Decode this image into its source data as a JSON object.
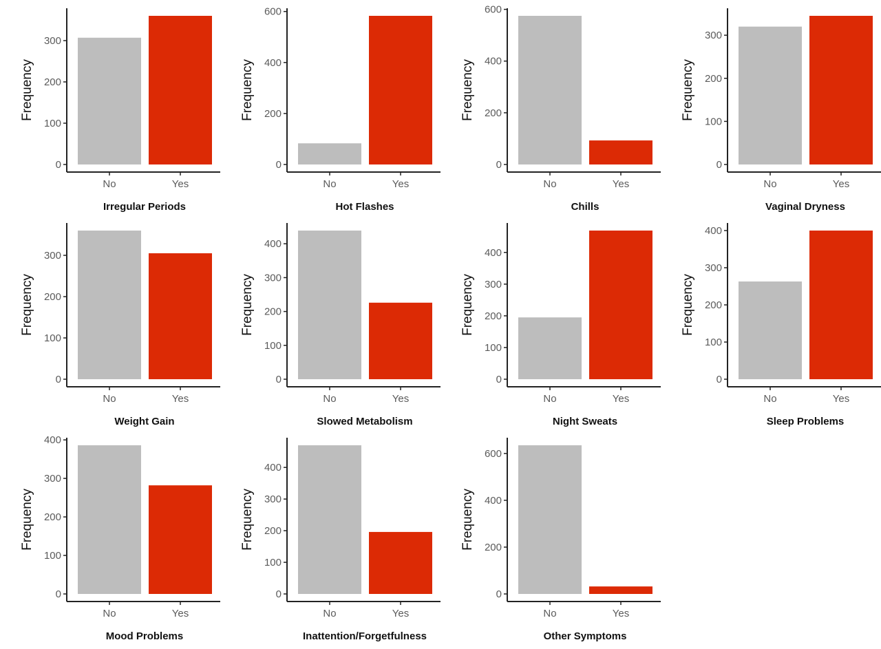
{
  "chart_data": [
    {
      "type": "bar",
      "title": "Irregular Periods",
      "ylabel": "Frequency",
      "categories": [
        "No",
        "Yes"
      ],
      "values": [
        307,
        360
      ],
      "yticks": [
        0,
        100,
        200,
        300
      ],
      "ylim": [
        0,
        360
      ]
    },
    {
      "type": "bar",
      "title": "Hot Flashes",
      "ylabel": "Frequency",
      "categories": [
        "No",
        "Yes"
      ],
      "values": [
        83,
        583
      ],
      "yticks": [
        0,
        200,
        400,
        600
      ],
      "ylim": [
        0,
        583
      ]
    },
    {
      "type": "bar",
      "title": "Chills",
      "ylabel": "Frequency",
      "categories": [
        "No",
        "Yes"
      ],
      "values": [
        575,
        93
      ],
      "yticks": [
        0,
        200,
        400,
        600
      ],
      "ylim": [
        0,
        575
      ]
    },
    {
      "type": "bar",
      "title": "Vaginal Dryness",
      "ylabel": "Frequency",
      "categories": [
        "No",
        "Yes"
      ],
      "values": [
        320,
        345
      ],
      "yticks": [
        0,
        100,
        200,
        300
      ],
      "ylim": [
        0,
        345
      ]
    },
    {
      "type": "bar",
      "title": "Weight Gain",
      "ylabel": "Frequency",
      "categories": [
        "No",
        "Yes"
      ],
      "values": [
        360,
        305
      ],
      "yticks": [
        0,
        100,
        200,
        300
      ],
      "ylim": [
        0,
        360
      ]
    },
    {
      "type": "bar",
      "title": "Slowed Metabolism",
      "ylabel": "Frequency",
      "categories": [
        "No",
        "Yes"
      ],
      "values": [
        439,
        226
      ],
      "yticks": [
        0,
        100,
        200,
        300,
        400
      ],
      "ylim": [
        0,
        439
      ]
    },
    {
      "type": "bar",
      "title": "Night Sweats",
      "ylabel": "Frequency",
      "categories": [
        "No",
        "Yes"
      ],
      "values": [
        195,
        469
      ],
      "yticks": [
        0,
        100,
        200,
        300,
        400
      ],
      "ylim": [
        0,
        469
      ]
    },
    {
      "type": "bar",
      "title": "Sleep Problems",
      "ylabel": "Frequency",
      "categories": [
        "No",
        "Yes"
      ],
      "values": [
        263,
        400
      ],
      "yticks": [
        0,
        100,
        200,
        300,
        400
      ],
      "ylim": [
        0,
        400
      ]
    },
    {
      "type": "bar",
      "title": "Mood Problems",
      "ylabel": "Frequency",
      "categories": [
        "No",
        "Yes"
      ],
      "values": [
        386,
        282
      ],
      "yticks": [
        0,
        100,
        200,
        300,
        400
      ],
      "ylim": [
        0,
        386
      ]
    },
    {
      "type": "bar",
      "title": "Inattention/Forgetfulness",
      "ylabel": "Frequency",
      "categories": [
        "No",
        "Yes"
      ],
      "values": [
        470,
        196
      ],
      "yticks": [
        0,
        100,
        200,
        300,
        400
      ],
      "ylim": [
        0,
        470
      ]
    },
    {
      "type": "bar",
      "title": "Other Symptoms",
      "ylabel": "Frequency",
      "categories": [
        "No",
        "Yes"
      ],
      "values": [
        635,
        32
      ],
      "yticks": [
        0,
        200,
        400,
        600
      ],
      "ylim": [
        0,
        635
      ]
    }
  ],
  "colors": {
    "No": "#bdbdbd",
    "Yes": "#dc2a05",
    "axis": "#222222"
  }
}
